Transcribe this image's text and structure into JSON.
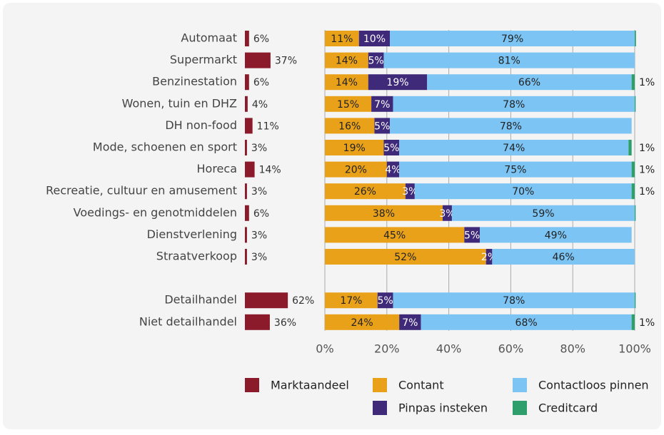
{
  "chart_data": {
    "type": "bar",
    "orientation": "horizontal",
    "stacked": true,
    "categories": [
      "Automaat",
      "Supermarkt",
      "Benzinestation",
      "Wonen, tuin en DHZ",
      "DH non-food",
      "Mode, schoenen en sport",
      "Horeca",
      "Recreatie, cultuur en amusement",
      "Voedings- en genotmiddelen",
      "Dienstverlening",
      "Straatverkoop",
      "Detailhandel",
      "Niet detailhandel"
    ],
    "market_share": {
      "name": "Marktaandeel",
      "color": "#8b1a2b",
      "values": [
        6,
        37,
        6,
        4,
        11,
        3,
        14,
        3,
        6,
        3,
        3,
        62,
        36
      ],
      "value_labels": [
        "6%",
        "37%",
        "6%",
        "4%",
        "11%",
        "3%",
        "14%",
        "3%",
        "6%",
        "3%",
        "3%",
        "62%",
        "36%"
      ]
    },
    "series": [
      {
        "name": "Contant",
        "color": "#e9a11a",
        "values": [
          11,
          14,
          14,
          15,
          16,
          19,
          20,
          26,
          38,
          45,
          52,
          17,
          24
        ],
        "value_labels": [
          "11%",
          "14%",
          "14%",
          "15%",
          "16%",
          "19%",
          "20%",
          "26%",
          "38%",
          "45%",
          "52%",
          "17%",
          "24%"
        ]
      },
      {
        "name": "Pinpas insteken",
        "color": "#3f2a7a",
        "values": [
          10,
          5,
          19,
          7,
          5,
          5,
          4,
          3,
          3,
          5,
          2,
          5,
          7
        ],
        "value_labels": [
          "10%",
          "5%",
          "19%",
          "7%",
          "5%",
          "5%",
          "4%",
          "3%",
          "3%",
          "5%",
          "2%",
          "5%",
          "7%"
        ]
      },
      {
        "name": "Contactloos pinnen",
        "color": "#7cc4f4",
        "values": [
          79,
          81,
          66,
          78,
          78,
          74,
          75,
          70,
          59,
          49,
          46,
          78,
          68
        ],
        "value_labels": [
          "79%",
          "81%",
          "66%",
          "78%",
          "78%",
          "74%",
          "75%",
          "70%",
          "59%",
          "49%",
          "46%",
          "78%",
          "68%"
        ]
      },
      {
        "name": "Creditcard",
        "color": "#2e9e6b",
        "values": [
          0.4,
          0,
          1,
          0.3,
          0,
          1,
          1,
          1,
          0.3,
          0,
          0,
          0.3,
          1
        ],
        "value_labels": [
          null,
          null,
          "1%",
          null,
          null,
          "1%",
          "1%",
          "1%",
          null,
          null,
          null,
          null,
          "1%"
        ]
      }
    ],
    "xlim": [
      0,
      100
    ],
    "xticks": [
      {
        "value": 0,
        "label": "0%"
      },
      {
        "value": 20,
        "label": "20%"
      },
      {
        "value": 40,
        "label": "40%"
      },
      {
        "value": 60,
        "label": "60%"
      },
      {
        "value": 80,
        "label": "80%"
      },
      {
        "value": 100,
        "label": "100%"
      }
    ],
    "grid": true
  }
}
